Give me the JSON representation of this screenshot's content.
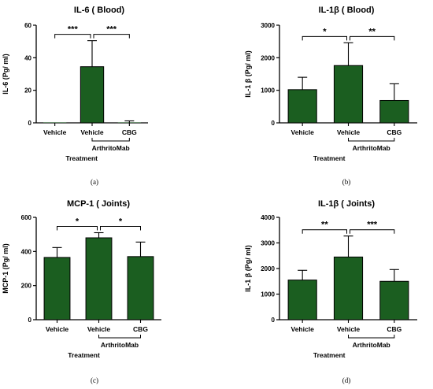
{
  "colors": {
    "bar": "#1b5e20",
    "axis": "#000000"
  },
  "chart_data": [
    {
      "type": "bar",
      "title": "IL-6 ( Blood)",
      "ylabel": "IL-6 (Pg/ ml)",
      "xlabel": "Treatment",
      "group_label": "ArthritoMab",
      "caption": "(a)",
      "categories": [
        "Vehicle",
        "Vehicle",
        "CBG"
      ],
      "values": [
        0,
        34.5,
        0
      ],
      "errors": [
        0,
        16,
        1.2
      ],
      "ylim": [
        0,
        60
      ],
      "yticks": [
        0,
        20,
        40,
        60
      ],
      "significance": [
        {
          "from": 0,
          "to": 1,
          "label": "***"
        },
        {
          "from": 1,
          "to": 2,
          "label": "***"
        }
      ]
    },
    {
      "type": "bar",
      "title": "IL-1β ( Blood)",
      "ylabel": "IL-1 β (Pg/ ml)",
      "xlabel": "Treatment",
      "group_label": "ArthritoMab",
      "caption": "(b)",
      "categories": [
        "Vehicle",
        "Vehicle",
        "CBG"
      ],
      "values": [
        1020,
        1760,
        690
      ],
      "errors": [
        380,
        700,
        510
      ],
      "ylim": [
        0,
        3000
      ],
      "yticks": [
        0,
        1000,
        2000,
        3000
      ],
      "significance": [
        {
          "from": 0,
          "to": 1,
          "label": "*"
        },
        {
          "from": 1,
          "to": 2,
          "label": "**"
        }
      ]
    },
    {
      "type": "bar",
      "title": "MCP-1 ( Joints)",
      "ylabel": "MCP-1 (Pg/ ml)",
      "xlabel": "Treatment",
      "group_label": "ArthritoMab",
      "caption": "(c)",
      "categories": [
        "Vehicle",
        "Vehicle",
        "CBG"
      ],
      "values": [
        365,
        480,
        370
      ],
      "errors": [
        58,
        30,
        85
      ],
      "ylim": [
        0,
        600
      ],
      "yticks": [
        0,
        200,
        400,
        600
      ],
      "significance": [
        {
          "from": 0,
          "to": 1,
          "label": "*"
        },
        {
          "from": 1,
          "to": 2,
          "label": "*"
        }
      ]
    },
    {
      "type": "bar",
      "title": "IL-1β ( Joints)",
      "ylabel": "IL-1 β (Pg/ ml)",
      "xlabel": "Treatment",
      "group_label": "ArthritoMab",
      "caption": "(d)",
      "categories": [
        "Vehicle",
        "Vehicle",
        "CBG"
      ],
      "values": [
        1550,
        2450,
        1500
      ],
      "errors": [
        380,
        820,
        460
      ],
      "ylim": [
        0,
        4000
      ],
      "yticks": [
        0,
        1000,
        2000,
        3000,
        4000
      ],
      "significance": [
        {
          "from": 0,
          "to": 1,
          "label": "**"
        },
        {
          "from": 1,
          "to": 2,
          "label": "***"
        }
      ]
    }
  ]
}
